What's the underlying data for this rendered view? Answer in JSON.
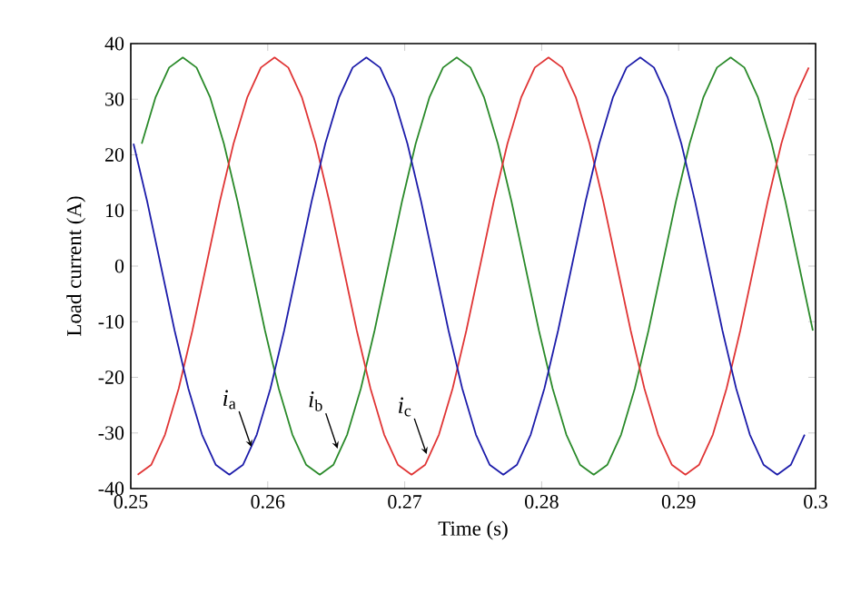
{
  "chart_data": {
    "type": "line",
    "xlabel": "Time (s)",
    "ylabel": "Load current (A)",
    "xlim": [
      0.25,
      0.3
    ],
    "ylim": [
      -40,
      40
    ],
    "xticks": [
      0.25,
      0.26,
      0.27,
      0.28,
      0.29,
      0.3
    ],
    "yticks": [
      -40,
      -30,
      -20,
      -10,
      0,
      10,
      20,
      30,
      40
    ],
    "marker": "none",
    "line_style": "solid",
    "series": [
      {
        "color": "#2a8a2a",
        "x": [
          0.2508,
          0.2518,
          0.2528,
          0.2538,
          0.2548,
          0.2558,
          0.2568,
          0.2578,
          0.2588,
          0.2598,
          0.2608,
          0.2618,
          0.2628,
          0.2638,
          0.2648,
          0.2658,
          0.2668,
          0.2678,
          0.2688,
          0.2698,
          0.2708,
          0.2718,
          0.2728,
          0.2738,
          0.2748,
          0.2758,
          0.2768,
          0.2778,
          0.2788,
          0.2798,
          0.2808,
          0.2818,
          0.2828,
          0.2838,
          0.2848,
          0.2858,
          0.2868,
          0.2878,
          0.2888,
          0.2898,
          0.2908,
          0.2918,
          0.2928,
          0.2938,
          0.2948,
          0.2958,
          0.2968,
          0.2978,
          0.2988,
          0.2998
        ],
        "values": [
          22.0,
          30.3,
          35.7,
          37.5,
          35.7,
          30.3,
          22.0,
          11.6,
          0,
          -11.6,
          -22.0,
          -30.3,
          -35.7,
          -37.5,
          -35.7,
          -30.3,
          -22.0,
          -11.6,
          0,
          11.6,
          22.0,
          30.3,
          35.7,
          37.5,
          35.7,
          30.3,
          22.0,
          11.6,
          0,
          -11.6,
          -22.0,
          -30.3,
          -35.7,
          -37.5,
          -35.7,
          -30.3,
          -22.0,
          -11.6,
          0,
          11.6,
          22.0,
          30.3,
          35.7,
          37.5,
          35.7,
          30.3,
          22.0,
          11.6,
          0,
          -11.6
        ]
      },
      {
        "color": "#e03535",
        "x": [
          0.2505,
          0.2515,
          0.2525,
          0.2535,
          0.2545,
          0.2555,
          0.2565,
          0.2575,
          0.2585,
          0.2595,
          0.2605,
          0.2615,
          0.2625,
          0.2635,
          0.2645,
          0.2655,
          0.2665,
          0.2675,
          0.2685,
          0.2695,
          0.2705,
          0.2715,
          0.2725,
          0.2735,
          0.2745,
          0.2755,
          0.2765,
          0.2775,
          0.2785,
          0.2795,
          0.2805,
          0.2815,
          0.2825,
          0.2835,
          0.2845,
          0.2855,
          0.2865,
          0.2875,
          0.2885,
          0.2895,
          0.2905,
          0.2915,
          0.2925,
          0.2935,
          0.2945,
          0.2955,
          0.2965,
          0.2975,
          0.2985,
          0.2995
        ],
        "values": [
          -37.5,
          -35.7,
          -30.3,
          -22.0,
          -11.6,
          0,
          11.6,
          22.0,
          30.3,
          35.7,
          37.5,
          35.7,
          30.3,
          22.0,
          11.6,
          0,
          -11.6,
          -22.0,
          -30.3,
          -35.7,
          -37.5,
          -35.7,
          -30.3,
          -22.0,
          -11.6,
          0,
          11.6,
          22.0,
          30.3,
          35.7,
          37.5,
          35.7,
          30.3,
          22.0,
          11.6,
          0,
          -11.6,
          -22.0,
          -30.3,
          -35.7,
          -37.5,
          -35.7,
          -30.3,
          -22.0,
          -11.6,
          0,
          11.6,
          22.0,
          30.3,
          35.7
        ]
      },
      {
        "color": "#1c1caa",
        "x": [
          0.2502,
          0.2512,
          0.2522,
          0.2532,
          0.2542,
          0.2552,
          0.2562,
          0.2572,
          0.2582,
          0.2592,
          0.2602,
          0.2612,
          0.2622,
          0.2632,
          0.2642,
          0.2652,
          0.2662,
          0.2672,
          0.2682,
          0.2692,
          0.2702,
          0.2712,
          0.2722,
          0.2732,
          0.2742,
          0.2752,
          0.2762,
          0.2772,
          0.2782,
          0.2792,
          0.2802,
          0.2812,
          0.2822,
          0.2832,
          0.2842,
          0.2852,
          0.2862,
          0.2872,
          0.2882,
          0.2892,
          0.2902,
          0.2912,
          0.2922,
          0.2932,
          0.2942,
          0.2952,
          0.2962,
          0.2972,
          0.2982,
          0.2992
        ],
        "values": [
          22.0,
          11.6,
          0,
          -11.6,
          -22.0,
          -30.3,
          -35.7,
          -37.5,
          -35.7,
          -30.3,
          -22.0,
          -11.6,
          0,
          11.6,
          22.0,
          30.3,
          35.7,
          37.5,
          35.7,
          30.3,
          22.0,
          11.6,
          0,
          -11.6,
          -22.0,
          -30.3,
          -35.7,
          -37.5,
          -35.7,
          -30.3,
          -22.0,
          -11.6,
          0,
          11.6,
          22.0,
          30.3,
          35.7,
          37.5,
          35.7,
          30.3,
          22.0,
          11.6,
          0,
          -11.6,
          -22.0,
          -30.3,
          -35.7,
          -37.5,
          -35.7,
          -30.3
        ]
      }
    ],
    "annotations": [
      {
        "text": "*i*$_{a}$",
        "x": 0.2588,
        "y": -32.5
      },
      {
        "text": "*i*$_{b}$",
        "x": 0.2651,
        "y": -32.8
      },
      {
        "text": "*i*$_{c}$",
        "x": 0.2716,
        "y": -33.8
      }
    ]
  }
}
